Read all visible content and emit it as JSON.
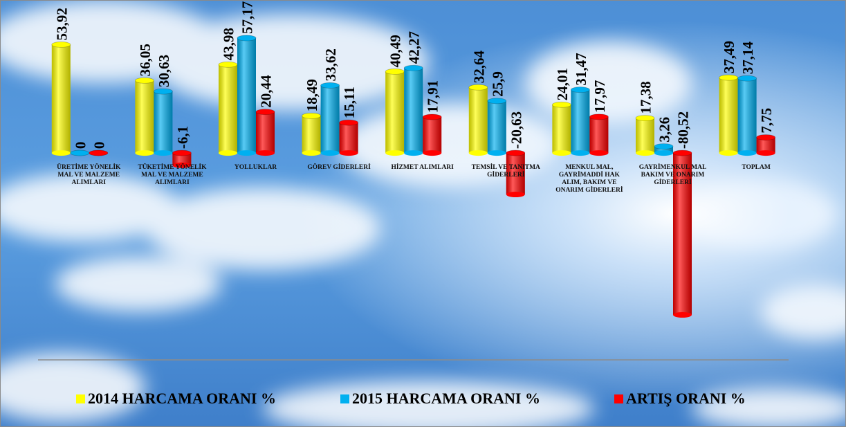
{
  "chart_data": {
    "type": "bar",
    "categories": [
      "ÜRETİME YÖNELİK MAL VE MALZEME ALIMLARI",
      "TÜKETİME YÖNELİK MAL VE MALZEME ALIMLARI",
      "YOLLUKLAR",
      "GÖREV GİDERLERİ",
      "HİZMET ALIMLARI",
      "TEMSİL VE TANITMA GİDERLERİ",
      "MENKUL MAL, GAYRİMADDİ HAK ALIM, BAKIM VE ONARIM GİDERLERİ",
      "GAYRİMENKUL MAL BAKIM VE ONARIM GİDERLERİ",
      "TOPLAM"
    ],
    "series": [
      {
        "name": "2014 HARCAMA ORANI %",
        "color": "#ffff00",
        "values": [
          53.92,
          36.05,
          43.98,
          18.49,
          40.49,
          32.64,
          24.01,
          17.38,
          37.49
        ],
        "value_labels": [
          "53,92",
          "36,05",
          "43,98",
          "18,49",
          "40,49",
          "32,64",
          "24,01",
          "17,38",
          "37,49"
        ]
      },
      {
        "name": "2015 HARCAMA ORANI %",
        "color": "#00b0f0",
        "values": [
          0,
          30.63,
          57.17,
          33.62,
          42.27,
          25.9,
          31.47,
          3.26,
          37.14
        ],
        "value_labels": [
          "0",
          "30,63",
          "57,17",
          "33,62",
          "42,27",
          "25,9",
          "31,47",
          "3,26",
          "37,14"
        ]
      },
      {
        "name": "ARTIŞ ORANI %",
        "color": "#ff0000",
        "values": [
          0,
          -6.1,
          20.44,
          15.11,
          17.91,
          -20.63,
          17.97,
          -80.52,
          7.75
        ],
        "value_labels": [
          "0",
          "-6,1",
          "20,44",
          "15,11",
          "17,91",
          "-20,63",
          "17,97",
          "-80,52",
          "7,75"
        ]
      }
    ]
  }
}
